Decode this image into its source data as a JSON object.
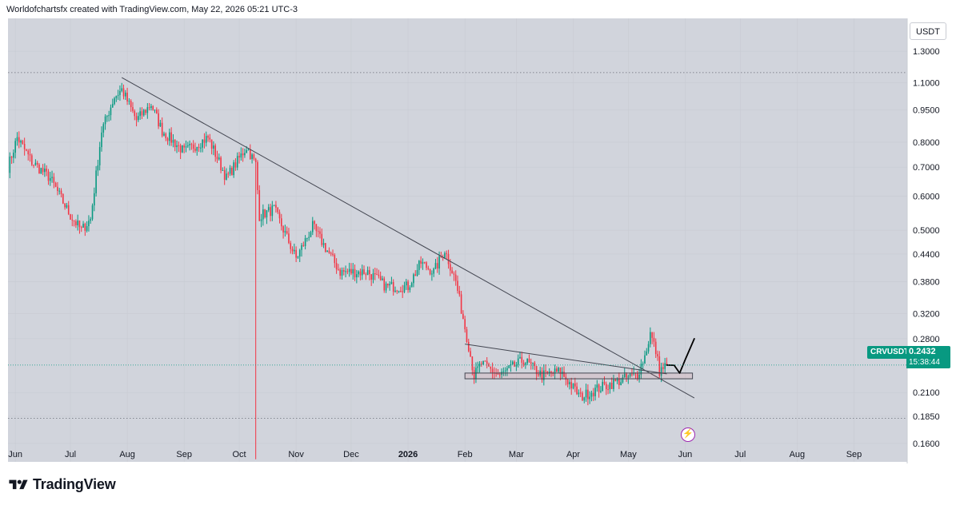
{
  "header": {
    "credit": "Worldofchartsfx created with TradingView.com, May 22, 2026 05:21 UTC-3"
  },
  "currency_label": "USDT",
  "symbol": {
    "name": "CRVUSDT",
    "price": "0.2432",
    "countdown": "15:38:44",
    "color": "#089981"
  },
  "footer": {
    "brand": "TradingView"
  },
  "icons": {
    "footer_logo": "tradingview-logo-icon",
    "flash": "lightning-icon"
  },
  "colors": {
    "up": "#089981",
    "down": "#f23645",
    "background": "#d1d4dc",
    "line": "#434651",
    "drawing": "#000000"
  },
  "chart_data": {
    "type": "candlestick",
    "yscale": "log",
    "ylim": [
      0.145,
      1.55
    ],
    "yticks": [
      {
        "label": "1.3000",
        "v": 1.3
      },
      {
        "label": "1.1000",
        "v": 1.1
      },
      {
        "label": "0.9500",
        "v": 0.95
      },
      {
        "label": "0.8000",
        "v": 0.8
      },
      {
        "label": "0.7000",
        "v": 0.7
      },
      {
        "label": "0.6000",
        "v": 0.6
      },
      {
        "label": "0.5000",
        "v": 0.5
      },
      {
        "label": "0.4400",
        "v": 0.44
      },
      {
        "label": "0.3800",
        "v": 0.38
      },
      {
        "label": "0.3200",
        "v": 0.32
      },
      {
        "label": "0.2800",
        "v": 0.28
      },
      {
        "label": "0.2100",
        "v": 0.21
      },
      {
        "label": "0.1850",
        "v": 0.185
      },
      {
        "label": "0.1600",
        "v": 0.16
      }
    ],
    "xticks": [
      "Jun",
      "Jul",
      "Aug",
      "Sep",
      "Oct",
      "Nov",
      "Dec",
      "2026",
      "Feb",
      "Mar",
      "Apr",
      "May",
      "Jun",
      "Jul",
      "Aug",
      "Sep"
    ],
    "xrange_days": [
      "2025-05-28",
      "2026-09-30"
    ],
    "xtick_dates": [
      "2025-06-01",
      "2025-07-01",
      "2025-08-01",
      "2025-09-01",
      "2025-10-01",
      "2025-11-01",
      "2025-12-01",
      "2026-01-01",
      "2026-02-01",
      "2026-03-01",
      "2026-04-01",
      "2026-05-01",
      "2026-06-01",
      "2026-07-01",
      "2026-08-01",
      "2026-09-01"
    ],
    "anchors": [
      {
        "d": "2025-05-28",
        "c": 0.7
      },
      {
        "d": "2025-06-02",
        "c": 0.82
      },
      {
        "d": "2025-06-10",
        "c": 0.72
      },
      {
        "d": "2025-06-20",
        "c": 0.66
      },
      {
        "d": "2025-07-01",
        "c": 0.54
      },
      {
        "d": "2025-07-07",
        "c": 0.5
      },
      {
        "d": "2025-07-12",
        "c": 0.53
      },
      {
        "d": "2025-07-18",
        "c": 0.85
      },
      {
        "d": "2025-07-25",
        "c": 1.02
      },
      {
        "d": "2025-07-29",
        "c": 1.06
      },
      {
        "d": "2025-08-06",
        "c": 0.9
      },
      {
        "d": "2025-08-14",
        "c": 0.98
      },
      {
        "d": "2025-08-20",
        "c": 0.85
      },
      {
        "d": "2025-09-01",
        "c": 0.76
      },
      {
        "d": "2025-09-14",
        "c": 0.82
      },
      {
        "d": "2025-09-24",
        "c": 0.66
      },
      {
        "d": "2025-10-05",
        "c": 0.78
      },
      {
        "d": "2025-10-10",
        "c": 0.71
      },
      {
        "d": "2025-10-12",
        "c": 0.54
      },
      {
        "d": "2025-10-20",
        "c": 0.56
      },
      {
        "d": "2025-11-01",
        "c": 0.43
      },
      {
        "d": "2025-11-10",
        "c": 0.51
      },
      {
        "d": "2025-11-25",
        "c": 0.4
      },
      {
        "d": "2025-12-10",
        "c": 0.4
      },
      {
        "d": "2025-12-20",
        "c": 0.37
      },
      {
        "d": "2026-01-01",
        "c": 0.37
      },
      {
        "d": "2026-01-08",
        "c": 0.42
      },
      {
        "d": "2026-01-15",
        "c": 0.4
      },
      {
        "d": "2026-01-21",
        "c": 0.45
      },
      {
        "d": "2026-01-27",
        "c": 0.38
      },
      {
        "d": "2026-02-03",
        "c": 0.27
      },
      {
        "d": "2026-02-06",
        "c": 0.23
      },
      {
        "d": "2026-02-10",
        "c": 0.245
      },
      {
        "d": "2026-02-20",
        "c": 0.23
      },
      {
        "d": "2026-03-05",
        "c": 0.25
      },
      {
        "d": "2026-03-15",
        "c": 0.23
      },
      {
        "d": "2026-03-25",
        "c": 0.235
      },
      {
        "d": "2026-04-05",
        "c": 0.205
      },
      {
        "d": "2026-04-15",
        "c": 0.215
      },
      {
        "d": "2026-04-28",
        "c": 0.225
      },
      {
        "d": "2026-05-06",
        "c": 0.232
      },
      {
        "d": "2026-05-10",
        "c": 0.255
      },
      {
        "d": "2026-05-13",
        "c": 0.288
      },
      {
        "d": "2026-05-16",
        "c": 0.262
      },
      {
        "d": "2026-05-18",
        "c": 0.236
      },
      {
        "d": "2026-05-22",
        "c": 0.2432
      }
    ],
    "spike_low": {
      "d": "2025-10-10",
      "v": 0.147
    },
    "trendlines": [
      {
        "name": "main-downtrend",
        "p1": {
          "d": "2025-07-29",
          "v": 1.13
        },
        "p2": {
          "d": "2026-06-06",
          "v": 0.204
        }
      },
      {
        "name": "triangle-top",
        "p1": {
          "d": "2026-02-01",
          "v": 0.272
        },
        "p2": {
          "d": "2026-05-22",
          "v": 0.232
        }
      }
    ],
    "support_zone": [
      0.226,
      0.233
    ],
    "support_zone_dates": [
      "2026-02-01",
      "2026-06-05"
    ],
    "dotted_levels": [
      1.16,
      0.183
    ],
    "projection": [
      {
        "d": "2026-05-22",
        "v": 0.2432
      },
      {
        "d": "2026-05-26",
        "v": 0.243
      },
      {
        "d": "2026-05-29",
        "v": 0.233
      },
      {
        "d": "2026-06-01",
        "v": 0.25
      },
      {
        "d": "2026-06-06",
        "v": 0.28
      }
    ]
  }
}
